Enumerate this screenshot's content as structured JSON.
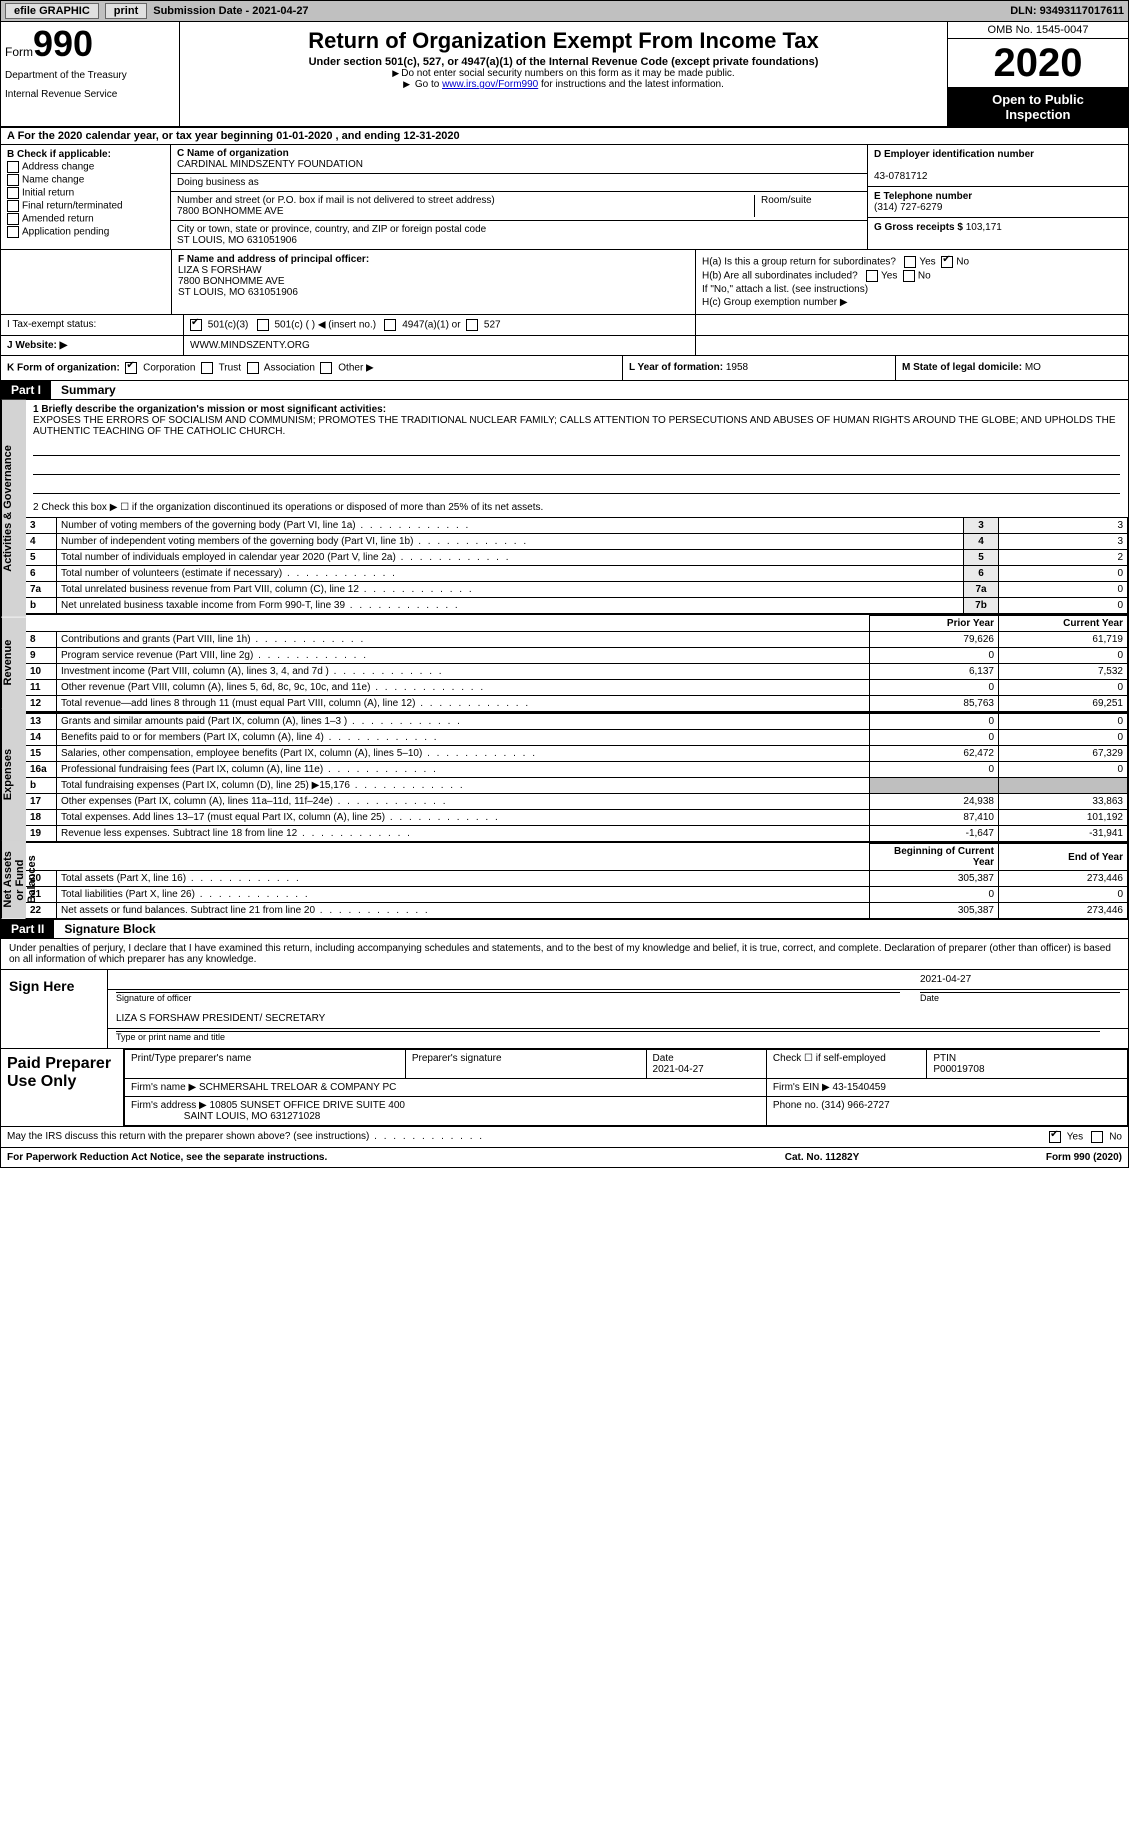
{
  "top_bar": {
    "efile": "efile GRAPHIC",
    "print": "print",
    "submission_label": "Submission Date - ",
    "submission_date": "2021-04-27",
    "dln_label": "DLN: ",
    "dln": "93493117017611"
  },
  "header": {
    "form_word": "Form",
    "form_number": "990",
    "dept1": "Department of the Treasury",
    "dept2": "Internal Revenue Service",
    "title": "Return of Organization Exempt From Income Tax",
    "subtitle": "Under section 501(c), 527, or 4947(a)(1) of the Internal Revenue Code (except private foundations)",
    "note1": "Do not enter social security numbers on this form as it may be made public.",
    "note2_prefix": "Go to ",
    "note2_link": "www.irs.gov/Form990",
    "note2_suffix": " for instructions and the latest information.",
    "omb": "OMB No. 1545-0047",
    "year": "2020",
    "open_public1": "Open to Public",
    "open_public2": "Inspection"
  },
  "period": {
    "label1": "A For the 2020 calendar year, or tax year beginning ",
    "begin": "01-01-2020",
    "label2": " , and ending ",
    "end": "12-31-2020"
  },
  "section_b": {
    "title": "B Check if applicable:",
    "opts": [
      "Address change",
      "Name change",
      "Initial return",
      "Final return/terminated",
      "Amended return",
      "Application pending"
    ]
  },
  "section_c": {
    "name_label": "C Name of organization",
    "org_name": "CARDINAL MINDSZENTY FOUNDATION",
    "dba_label": "Doing business as",
    "dba": "",
    "street_label": "Number and street (or P.O. box if mail is not delivered to street address)",
    "room_label": "Room/suite",
    "street": "7800 BONHOMME AVE",
    "city_label": "City or town, state or province, country, and ZIP or foreign postal code",
    "city": "ST LOUIS, MO  631051906"
  },
  "section_d": {
    "label": "D Employer identification number",
    "ein": "43-0781712"
  },
  "section_e": {
    "label": "E Telephone number",
    "phone": "(314) 727-6279"
  },
  "section_g": {
    "label": "G Gross receipts $ ",
    "amount": "103,171"
  },
  "section_f": {
    "label": "F Name and address of principal officer:",
    "name": "LIZA S FORSHAW",
    "addr1": "7800 BONHOMME AVE",
    "addr2": "ST LOUIS, MO  631051906"
  },
  "section_h": {
    "a_label": "H(a)  Is this a group return for subordinates?",
    "a_yes": "Yes",
    "a_no": "No",
    "a_val": "No",
    "b_label": "H(b)  Are all subordinates included?",
    "b_yes": "Yes",
    "b_no": "No",
    "b_note": "If \"No,\" attach a list. (see instructions)",
    "c_label": "H(c)  Group exemption number ▶"
  },
  "section_i": {
    "label": "I  Tax-exempt status:",
    "opt1": "501(c)(3)",
    "opt2": "501(c) (   ) ◀ (insert no.)",
    "opt3": "4947(a)(1) or",
    "opt4": "527",
    "checked": "501(c)(3)"
  },
  "section_j": {
    "label": "J  Website: ▶",
    "value": "WWW.MINDSZENTY.ORG"
  },
  "section_k": {
    "label": "K Form of organization:",
    "opts": [
      "Corporation",
      "Trust",
      "Association",
      "Other ▶"
    ],
    "checked": "Corporation"
  },
  "section_l": {
    "label": "L Year of formation: ",
    "value": "1958"
  },
  "section_m": {
    "label": "M State of legal domicile: ",
    "value": "MO"
  },
  "part1": {
    "tag": "Part I",
    "title": "Summary",
    "side_ag": "Activities & Governance",
    "side_rev": "Revenue",
    "side_exp": "Expenses",
    "side_net": "Net Assets or Fund Balances",
    "q1_label": "1  Briefly describe the organization's mission or most significant activities:",
    "q1_text": "EXPOSES THE ERRORS OF SOCIALISM AND COMMUNISM; PROMOTES THE TRADITIONAL NUCLEAR FAMILY; CALLS ATTENTION TO PERSECUTIONS AND ABUSES OF HUMAN RIGHTS AROUND THE GLOBE; AND UPHOLDS THE AUTHENTIC TEACHING OF THE CATHOLIC CHURCH.",
    "q2_label": "2  Check this box ▶ ☐  if the organization discontinued its operations or disposed of more than 25% of its net assets.",
    "rows_single": [
      {
        "n": "3",
        "label": "Number of voting members of the governing body (Part VI, line 1a)",
        "box": "3",
        "val": "3"
      },
      {
        "n": "4",
        "label": "Number of independent voting members of the governing body (Part VI, line 1b)",
        "box": "4",
        "val": "3"
      },
      {
        "n": "5",
        "label": "Total number of individuals employed in calendar year 2020 (Part V, line 2a)",
        "box": "5",
        "val": "2"
      },
      {
        "n": "6",
        "label": "Total number of volunteers (estimate if necessary)",
        "box": "6",
        "val": "0"
      },
      {
        "n": "7a",
        "label": "Total unrelated business revenue from Part VIII, column (C), line 12",
        "box": "7a",
        "val": "0"
      },
      {
        "n": " b",
        "label": "Net unrelated business taxable income from Form 990-T, line 39",
        "box": "7b",
        "val": "0"
      }
    ],
    "hdr_prior": "Prior Year",
    "hdr_current": "Current Year",
    "rows_rev": [
      {
        "n": "8",
        "label": "Contributions and grants (Part VIII, line 1h)",
        "prior": "79,626",
        "curr": "61,719"
      },
      {
        "n": "9",
        "label": "Program service revenue (Part VIII, line 2g)",
        "prior": "0",
        "curr": "0"
      },
      {
        "n": "10",
        "label": "Investment income (Part VIII, column (A), lines 3, 4, and 7d )",
        "prior": "6,137",
        "curr": "7,532"
      },
      {
        "n": "11",
        "label": "Other revenue (Part VIII, column (A), lines 5, 6d, 8c, 9c, 10c, and 11e)",
        "prior": "0",
        "curr": "0"
      },
      {
        "n": "12",
        "label": "Total revenue—add lines 8 through 11 (must equal Part VIII, column (A), line 12)",
        "prior": "85,763",
        "curr": "69,251"
      }
    ],
    "rows_exp": [
      {
        "n": "13",
        "label": "Grants and similar amounts paid (Part IX, column (A), lines 1–3 )",
        "prior": "0",
        "curr": "0"
      },
      {
        "n": "14",
        "label": "Benefits paid to or for members (Part IX, column (A), line 4)",
        "prior": "0",
        "curr": "0"
      },
      {
        "n": "15",
        "label": "Salaries, other compensation, employee benefits (Part IX, column (A), lines 5–10)",
        "prior": "62,472",
        "curr": "67,329"
      },
      {
        "n": "16a",
        "label": "Professional fundraising fees (Part IX, column (A), line 11e)",
        "prior": "0",
        "curr": "0"
      },
      {
        "n": " b",
        "label": "Total fundraising expenses (Part IX, column (D), line 25) ▶15,176",
        "prior": "",
        "curr": "",
        "shade": true
      },
      {
        "n": "17",
        "label": "Other expenses (Part IX, column (A), lines 11a–11d, 11f–24e)",
        "prior": "24,938",
        "curr": "33,863"
      },
      {
        "n": "18",
        "label": "Total expenses. Add lines 13–17 (must equal Part IX, column (A), line 25)",
        "prior": "87,410",
        "curr": "101,192"
      },
      {
        "n": "19",
        "label": "Revenue less expenses. Subtract line 18 from line 12",
        "prior": "-1,647",
        "curr": "-31,941"
      }
    ],
    "hdr_begin": "Beginning of Current Year",
    "hdr_end": "End of Year",
    "rows_net": [
      {
        "n": "20",
        "label": "Total assets (Part X, line 16)",
        "prior": "305,387",
        "curr": "273,446"
      },
      {
        "n": "21",
        "label": "Total liabilities (Part X, line 26)",
        "prior": "0",
        "curr": "0"
      },
      {
        "n": "22",
        "label": "Net assets or fund balances. Subtract line 21 from line 20",
        "prior": "305,387",
        "curr": "273,446"
      }
    ]
  },
  "part2": {
    "tag": "Part II",
    "title": "Signature Block",
    "decl": "Under penalties of perjury, I declare that I have examined this return, including accompanying schedules and statements, and to the best of my knowledge and belief, it is true, correct, and complete. Declaration of preparer (other than officer) is based on all information of which preparer has any knowledge.",
    "sign_here": "Sign Here",
    "sig_officer_label": "Signature of officer",
    "sig_date_label": "Date",
    "sig_date": "2021-04-27",
    "name_title": "LIZA S FORSHAW  PRESIDENT/ SECRETARY",
    "name_title_label": "Type or print name and title"
  },
  "preparer": {
    "title": "Paid Preparer Use Only",
    "col1": "Print/Type preparer's name",
    "col2": "Preparer's signature",
    "col3_label": "Date",
    "col3": "2021-04-27",
    "col4_label": "Check ☐ if self-employed",
    "col5_label": "PTIN",
    "col5": "P00019708",
    "firm_name_label": "Firm's name    ▶",
    "firm_name": "SCHMERSAHL TRELOAR & COMPANY PC",
    "firm_ein_label": "Firm's EIN ▶",
    "firm_ein": "43-1540459",
    "firm_addr_label": "Firm's address ▶",
    "firm_addr1": "10805 SUNSET OFFICE DRIVE SUITE 400",
    "firm_addr2": "SAINT LOUIS, MO  631271028",
    "phone_label": "Phone no. ",
    "phone": "(314) 966-2727"
  },
  "irs_discuss": {
    "q": "May the IRS discuss this return with the preparer shown above? (see instructions)",
    "yes": "Yes",
    "no": "No",
    "val": "Yes"
  },
  "footer": {
    "a": "For Paperwork Reduction Act Notice, see the separate instructions.",
    "b": "Cat. No. 11282Y",
    "c": "Form 990 (2020)"
  },
  "colors": {
    "topbar_bg": "#c0c0c0",
    "shade_bg": "#bfbfbf",
    "side_bg": "#d3d3d3",
    "black": "#000000",
    "white": "#ffffff",
    "link": "#0000cc"
  }
}
